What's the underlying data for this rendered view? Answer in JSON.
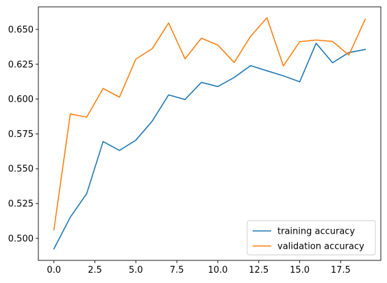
{
  "chart_data": {
    "type": "line",
    "title": "",
    "xlabel": "",
    "ylabel": "",
    "xlim": [
      -0.95,
      19.95
    ],
    "ylim": [
      0.4842,
      0.6662
    ],
    "grid": false,
    "legend_position": "lower-right",
    "x_ticks": [
      {
        "value": 0.0,
        "label": "0.0"
      },
      {
        "value": 2.5,
        "label": "2.5"
      },
      {
        "value": 5.0,
        "label": "5.0"
      },
      {
        "value": 7.5,
        "label": "7.5"
      },
      {
        "value": 10.0,
        "label": "10.0"
      },
      {
        "value": 12.5,
        "label": "12.5"
      },
      {
        "value": 15.0,
        "label": "15.0"
      },
      {
        "value": 17.5,
        "label": "17.5"
      }
    ],
    "y_ticks": [
      {
        "value": 0.5,
        "label": "0.500"
      },
      {
        "value": 0.525,
        "label": "0.525"
      },
      {
        "value": 0.55,
        "label": "0.550"
      },
      {
        "value": 0.575,
        "label": "0.575"
      },
      {
        "value": 0.6,
        "label": "0.600"
      },
      {
        "value": 0.625,
        "label": "0.625"
      },
      {
        "value": 0.65,
        "label": "0.650"
      }
    ],
    "x": [
      0,
      1,
      2,
      3,
      4,
      5,
      6,
      7,
      8,
      9,
      10,
      11,
      12,
      13,
      14,
      15,
      16,
      17,
      18,
      19
    ],
    "series": [
      {
        "name": "training accuracy",
        "color": "#1f77b4",
        "values": [
          0.4925,
          0.5152,
          0.5321,
          0.5695,
          0.5631,
          0.5705,
          0.5842,
          0.603,
          0.5997,
          0.612,
          0.609,
          0.6155,
          0.624,
          0.6203,
          0.6167,
          0.6124,
          0.6401,
          0.6261,
          0.6334,
          0.6356
        ]
      },
      {
        "name": "validation accuracy",
        "color": "#ff7f0e",
        "values": [
          0.5062,
          0.5893,
          0.587,
          0.6076,
          0.6014,
          0.6287,
          0.6362,
          0.6546,
          0.6289,
          0.6437,
          0.6388,
          0.6262,
          0.645,
          0.6584,
          0.6238,
          0.6412,
          0.6424,
          0.6414,
          0.6316,
          0.6574
        ]
      }
    ]
  }
}
